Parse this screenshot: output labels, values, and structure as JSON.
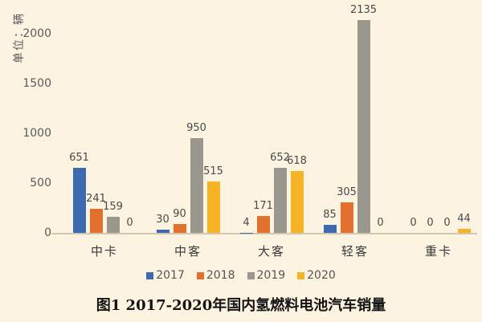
{
  "figure": {
    "unit_label": "单位：辆",
    "caption": "图1 2017-2020年国内氢燃料电池汽车销量"
  },
  "colors": {
    "background": "#fcf3e1",
    "axis_line": "#d2c7b0",
    "tick_text": "#5a5a5a",
    "label_text": "#4a4a4a"
  },
  "chart_data": {
    "type": "bar",
    "title": "图1 2017-2020年国内氢燃料电池汽车销量",
    "ylabel": "单位：辆",
    "xlabel": "",
    "categories": [
      "中卡",
      "中客",
      "大客",
      "轻客",
      "重卡"
    ],
    "series": [
      {
        "name": "2017",
        "color": "#3c6ab0",
        "values": [
          651,
          30,
          4,
          85,
          0
        ]
      },
      {
        "name": "2018",
        "color": "#e2702e",
        "values": [
          241,
          90,
          171,
          305,
          0
        ]
      },
      {
        "name": "2019",
        "color": "#9a978f",
        "values": [
          159,
          950,
          652,
          2135,
          0
        ]
      },
      {
        "name": "2020",
        "color": "#f5b325",
        "values": [
          0,
          515,
          618,
          0,
          44
        ]
      }
    ],
    "yticks": [
      0,
      500,
      1000,
      1500,
      2000
    ],
    "ylim": [
      0,
      2150
    ],
    "grid": false,
    "legend_position": "bottom",
    "data_labels": true
  }
}
